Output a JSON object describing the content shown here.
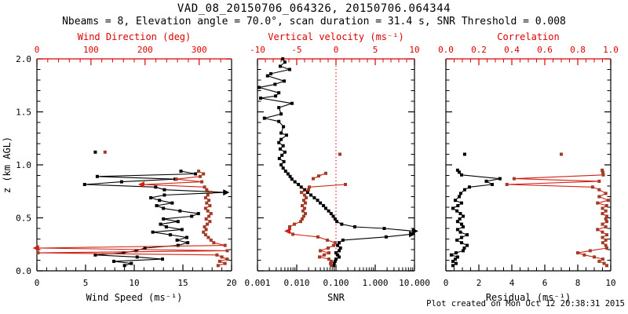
{
  "title": "VAD_08_20150706_064326, 20150706.064344",
  "subtitle": "Nbeams = 8, Elevation angle = 70.0°, scan duration = 31.4 s, SNR Threshold = 0.008",
  "footer": "Plot created on Mon Oct 12 20:38:31 2015",
  "colors": {
    "background": "#ffffff",
    "black": "#000000",
    "red_axis": "#dd0000",
    "red_line": "#cf2213",
    "red_marker": "#a23b28",
    "zero_line": "#dd0000"
  },
  "y_axis": {
    "label": "z (km AGL)",
    "range": [
      0,
      2
    ],
    "majors": [
      0,
      0.5,
      1,
      1.5,
      2
    ],
    "labels": [
      "0.0",
      "0.5",
      "1.0",
      "1.5",
      "2.0"
    ],
    "minor_step": 0.1
  },
  "chart_data": [
    {
      "type": "line",
      "name": "wind-panel",
      "bottom_axis": {
        "label": "Wind Speed (ms⁻¹)",
        "scale": "linear",
        "range": [
          0,
          20
        ],
        "majors": [
          0,
          5,
          10,
          15,
          20
        ],
        "labels": [
          "0",
          "5",
          "10",
          "15",
          "20"
        ],
        "minor_step": 1
      },
      "top_axis": {
        "label": "Wind Direction (deg)",
        "scale": "linear",
        "range": [
          0,
          360
        ],
        "majors": [
          0,
          100,
          200,
          300
        ],
        "labels": [
          "0",
          "100",
          "200",
          "300"
        ],
        "minor_step": 20,
        "zero_line": false
      },
      "series": [
        {
          "name": "wind-speed",
          "color": "black",
          "axis": "bottom",
          "z": [
            0.94,
            0.915,
            0.89,
            0.865,
            0.84,
            0.815,
            0.79,
            0.765,
            0.74,
            0.715,
            0.69,
            0.665,
            0.64,
            0.615,
            0.59,
            0.565,
            0.54,
            0.515,
            0.49,
            0.465,
            0.44,
            0.415,
            0.39,
            0.365,
            0.34,
            0.315,
            0.29,
            0.265,
            0.24,
            0.215,
            0.19,
            0.17,
            0.15,
            0.13,
            0.11,
            0.09,
            0.07,
            0.05
          ],
          "v": [
            14.8,
            16.3,
            6.2,
            14.2,
            8.7,
            4.9,
            12.2,
            13.1,
            19.3,
            13.1,
            11.7,
            12.6,
            13.9,
            12.3,
            13.0,
            14.7,
            16.6,
            15.9,
            13.0,
            14.5,
            12.7,
            13.3,
            14.9,
            11.9,
            13.7,
            15.4,
            14.4,
            15.5,
            14.5,
            11.1,
            10.2,
            8.9,
            6.0,
            10.3,
            12.9,
            7.9,
            9.7,
            9.0
          ],
          "points": [
            {
              "z": 1.12,
              "v": 6.0
            }
          ],
          "arrows": [
            {
              "z": 0.74,
              "v": 19.3,
              "dir": "right"
            }
          ]
        },
        {
          "name": "wind-direction",
          "color": "red",
          "axis": "top",
          "z": [
            0.94,
            0.915,
            0.89,
            0.865,
            0.84,
            0.815,
            0.79,
            0.765,
            0.74,
            0.715,
            0.69,
            0.665,
            0.64,
            0.615,
            0.59,
            0.565,
            0.54,
            0.515,
            0.49,
            0.465,
            0.44,
            0.415,
            0.39,
            0.365,
            0.34,
            0.315,
            0.29,
            0.265,
            0.24,
            0.215,
            0.19,
            0.17,
            0.15,
            0.13,
            0.11,
            0.09,
            0.07,
            0.05
          ],
          "v": [
            299,
            308,
            302,
            258,
            305,
            196,
            310,
            314,
            322,
            316,
            312,
            318,
            314,
            320,
            312,
            316,
            322,
            318,
            313,
            320,
            315,
            310,
            313,
            308,
            312,
            317,
            322,
            327,
            348,
            1,
            352,
            2,
            333,
            342,
            352,
            338,
            348,
            335
          ],
          "points": [
            {
              "z": 1.12,
              "v": 126
            }
          ],
          "arrows": [
            {
              "z": 0.815,
              "v": 196,
              "dir": "left"
            },
            {
              "z": 0.215,
              "v": 1,
              "dir": "left"
            }
          ]
        }
      ]
    },
    {
      "type": "line",
      "name": "snr-panel",
      "bottom_axis": {
        "label": "SNR",
        "scale": "log",
        "range": [
          0.001,
          10
        ],
        "majors": [
          0.001,
          0.01,
          0.1,
          1,
          10
        ],
        "labels": [
          "0.001",
          "0.010",
          "0.100",
          "1.000",
          "10.000"
        ]
      },
      "top_axis": {
        "label": "Vertical velocity (ms⁻¹)",
        "scale": "linear",
        "range": [
          -10,
          10
        ],
        "majors": [
          -10,
          -5,
          0,
          5,
          10
        ],
        "labels": [
          "-10",
          "-5",
          "0",
          "5",
          "10"
        ],
        "minor_step": 1,
        "zero_line": true
      },
      "series": [
        {
          "name": "snr",
          "color": "black",
          "axis": "bottom",
          "z": [
            2.0,
            1.97,
            1.93,
            1.9,
            1.86,
            1.84,
            1.79,
            1.76,
            1.73,
            1.68,
            1.65,
            1.63,
            1.58,
            1.54,
            1.48,
            1.44,
            1.41,
            1.36,
            1.3,
            1.28,
            1.24,
            1.21,
            1.18,
            1.15,
            1.12,
            1.09,
            1.06,
            1.03,
            1.0,
            0.97,
            0.94,
            0.915,
            0.89,
            0.865,
            0.84,
            0.815,
            0.79,
            0.765,
            0.74,
            0.715,
            0.69,
            0.665,
            0.64,
            0.615,
            0.59,
            0.565,
            0.54,
            0.515,
            0.49,
            0.465,
            0.44,
            0.415,
            0.4,
            0.375,
            0.345,
            0.32,
            0.29,
            0.265,
            0.24,
            0.215,
            0.19,
            0.17,
            0.15,
            0.13,
            0.11,
            0.09,
            0.07,
            0.05
          ],
          "v": [
            0.0044,
            0.005,
            0.0038,
            0.0066,
            0.0022,
            0.0018,
            0.0048,
            0.0028,
            0.0011,
            0.0035,
            0.0029,
            0.0012,
            0.0076,
            0.0035,
            0.004,
            0.0015,
            0.0035,
            0.0046,
            0.004,
            0.0055,
            0.004,
            0.0035,
            0.0045,
            0.0038,
            0.005,
            0.0042,
            0.0036,
            0.0047,
            0.004,
            0.0045,
            0.0052,
            0.006,
            0.0068,
            0.0075,
            0.009,
            0.011,
            0.013,
            0.016,
            0.019,
            0.023,
            0.028,
            0.034,
            0.04,
            0.048,
            0.055,
            0.065,
            0.075,
            0.085,
            0.095,
            0.105,
            0.14,
            0.3,
            1.7,
            9.5,
            8.0,
            1.9,
            0.15,
            0.12,
            0.11,
            0.13,
            0.12,
            0.1,
            0.11,
            0.12,
            0.1,
            0.095,
            0.09,
            0.087
          ],
          "points": [],
          "arrows": [
            {
              "z": 0.375,
              "v": 9.5,
              "dir": "right"
            },
            {
              "z": 0.345,
              "v": 8.0,
              "dir": "right"
            }
          ]
        },
        {
          "name": "vertical-velocity",
          "color": "red",
          "axis": "top",
          "z": [
            0.92,
            0.895,
            0.87,
            null,
            0.815,
            0.79,
            0.765,
            0.74,
            0.715,
            0.69,
            0.665,
            0.64,
            0.615,
            0.59,
            0.565,
            0.54,
            0.515,
            0.49,
            0.465,
            0.44,
            0.415,
            0.4,
            0.375,
            0.345,
            0.32,
            0.29,
            0.265,
            0.24,
            0.215,
            0.19,
            0.17,
            0.15,
            0.13,
            0.11,
            0.09,
            0.07,
            0.05
          ],
          "v": [
            -1.3,
            -2.2,
            -2.9,
            null,
            1.2,
            -3.4,
            -3.5,
            -4.4,
            -4.0,
            -3.8,
            -4.1,
            -3.9,
            -4.3,
            -4.0,
            -4.2,
            -3.9,
            -4.1,
            -4.3,
            -4.5,
            -5.3,
            -5.9,
            -5.9,
            -6.0,
            -5.5,
            -2.3,
            -1.1,
            -0.1,
            -0.3,
            -1.0,
            -2.0,
            -0.9,
            -1.5,
            -2.1,
            -0.9,
            -0.6,
            -0.7,
            -0.6
          ],
          "points": [
            {
              "z": 1.1,
              "v": 0.5
            }
          ],
          "arrows": [
            {
              "z": 0.375,
              "v": -6.0,
              "dir": "left"
            }
          ]
        }
      ]
    },
    {
      "type": "line",
      "name": "residual-panel",
      "bottom_axis": {
        "label": "Residual (ms⁻¹)",
        "scale": "linear",
        "range": [
          0,
          10
        ],
        "majors": [
          0,
          2,
          4,
          6,
          8,
          10
        ],
        "labels": [
          "0",
          "2",
          "4",
          "6",
          "8",
          "10"
        ],
        "minor_step": 0.5
      },
      "top_axis": {
        "label": "Correlation",
        "scale": "linear",
        "range": [
          0,
          1
        ],
        "majors": [
          0,
          0.2,
          0.4,
          0.6,
          0.8,
          1.0
        ],
        "labels": [
          "0.0",
          "0.2",
          "0.4",
          "0.6",
          "0.8",
          "1.0"
        ],
        "minor_step": 0.05,
        "zero_line": false
      },
      "series": [
        {
          "name": "residual",
          "color": "black",
          "axis": "bottom",
          "z": [
            0.95,
            0.93,
            0.905,
            0.87,
            0.845,
            0.815,
            0.79,
            0.765,
            0.73,
            0.7,
            0.665,
            0.64,
            0.615,
            0.59,
            0.565,
            0.54,
            0.515,
            0.49,
            0.465,
            0.44,
            0.415,
            0.39,
            0.365,
            0.34,
            0.315,
            0.29,
            0.265,
            0.24,
            0.215,
            0.19,
            0.17,
            0.15,
            0.13,
            0.11,
            0.09,
            0.07,
            0.05
          ],
          "v": [
            0.71,
            0.81,
            0.95,
            3.28,
            2.45,
            2.81,
            1.43,
            1.14,
            0.9,
            0.81,
            0.57,
            0.95,
            0.73,
            0.43,
            0.67,
            0.88,
            1.05,
            0.84,
            0.71,
            0.95,
            1.05,
            0.71,
            0.88,
            1.29,
            0.95,
            0.67,
            0.95,
            1.29,
            1.12,
            1.05,
            0.62,
            0.33,
            0.71,
            0.57,
            0.43,
            0.62,
            0.43
          ],
          "points": [
            {
              "z": 1.1,
              "v": 1.14
            }
          ],
          "arrows": []
        },
        {
          "name": "correlation",
          "color": "red",
          "axis": "top",
          "z": [
            0.95,
            0.93,
            0.905,
            0.87,
            0.845,
            0.815,
            0.79,
            0.765,
            0.73,
            0.7,
            0.665,
            0.64,
            0.615,
            0.59,
            0.565,
            0.54,
            0.515,
            0.49,
            0.465,
            0.44,
            0.415,
            0.39,
            0.365,
            0.34,
            0.315,
            0.29,
            0.265,
            0.24,
            0.215,
            0.19,
            0.17,
            0.15,
            0.13,
            0.11,
            0.09,
            0.07,
            0.05
          ],
          "v": [
            0.948,
            0.952,
            0.955,
            0.414,
            0.93,
            0.37,
            0.89,
            0.93,
            0.97,
            0.93,
            0.985,
            0.92,
            0.975,
            0.95,
            0.97,
            0.95,
            0.976,
            0.97,
            0.976,
            0.95,
            0.97,
            0.92,
            0.95,
            0.976,
            0.95,
            0.97,
            0.952,
            0.97,
            0.976,
            0.875,
            0.8,
            0.84,
            0.9,
            0.952,
            0.93,
            0.96,
            0.976
          ],
          "points": [
            {
              "z": 1.1,
              "v": 0.7
            }
          ],
          "arrows": []
        }
      ]
    }
  ]
}
